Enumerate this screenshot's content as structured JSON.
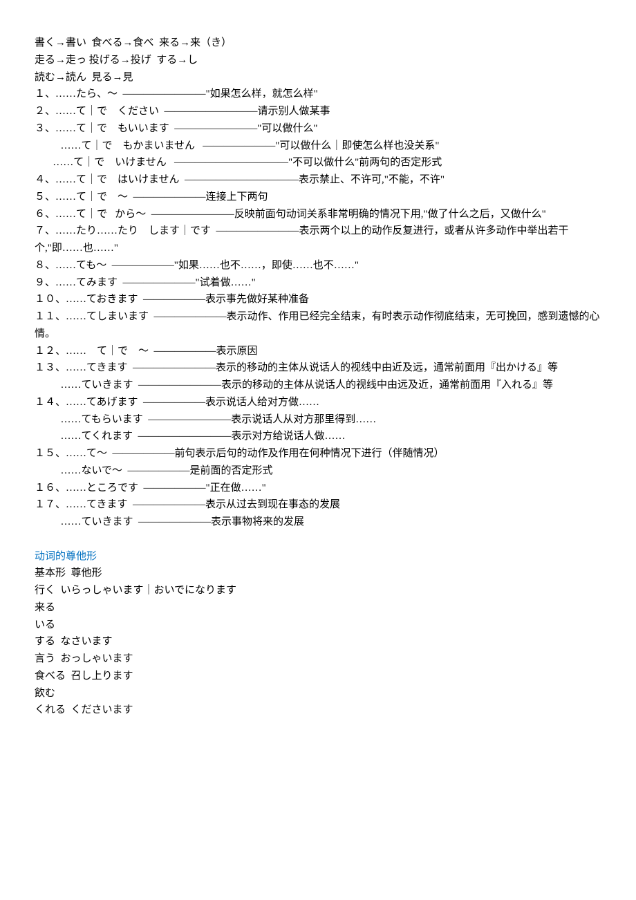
{
  "lines": [
    {
      "text": "書く→書い  食べる→食べ  来る→来（き）"
    },
    {
      "text": "走る→走っ 投げる→投げ  する→し"
    },
    {
      "text": "読む→読ん  見る→見"
    },
    {
      "text": "１、……たら、～  ————————\"如果怎么样，就怎么样\""
    },
    {
      "text": "２、……て｜で　ください  —————————请示别人做某事"
    },
    {
      "text": "３、……て｜で　もいいます  ————————\"可以做什么\""
    },
    {
      "text": "          ……て｜で　もかまいません   ———————\"可以做什么｜即使怎么样也没关系\""
    },
    {
      "text": "       ……て｜で　いけません   ———————————\"不可以做什么\"前两句的否定形式"
    },
    {
      "text": "４、……て｜で　はいけません  ———————————表示禁止、不许可,\"不能，不许\""
    },
    {
      "text": "５、……て｜で　～  ———————连接上下两句"
    },
    {
      "text": "６、……て｜で   から～  ————————反映前面句动词关系非常明确的情况下用,\"做了什么之后，又做什么\""
    },
    {
      "text": "７、……たり……たり　します｜です  ————————表示两个以上的动作反复进行，或者从许多动作中举出若干个,\"即……也……\""
    },
    {
      "text": "８、……ても～  ——————\"如果……也不……，即使……也不……\""
    },
    {
      "text": "９、……てみます  ———————\"试着做……\""
    },
    {
      "text": "１０、……ておきます  ——————表示事先做好某种准备"
    },
    {
      "text": "１１、……てしまいます  ———————表示动作、作用已经完全结束，有时表示动作彻底结束，无可挽回，感到遗憾的心情。"
    },
    {
      "text": "１２、……　て｜で　～  ——————表示原因"
    },
    {
      "text": "１３、……てきます  ————————表示的移动的主体从说话人的视线中由近及远，通常前面用『出かける』等"
    },
    {
      "text": "          ……ていきます  ————————表示的移动的主体从说话人的视线中由远及近，通常前面用『入れる』等"
    },
    {
      "text": "１４、……てあげます  ——————表示说话人给对方做……"
    },
    {
      "text": "          ……てもらいます  ————————表示说话人从对方那里得到……"
    },
    {
      "text": "          ……てくれます  —————————表示对方给说话人做……"
    },
    {
      "text": "１５、……て～  ——————前句表示后句的动作及作用在何种情况下进行（伴随情况）"
    },
    {
      "text": "          ……ないで～  ——————是前面的否定形式"
    },
    {
      "text": "１６、……ところです  ——————\"正在做……\""
    },
    {
      "text": "１７、……てきます  ———————表示从过去到现在事态的发展"
    },
    {
      "text": "          ……ていきます  ———————表示事物将来的发展"
    }
  ],
  "sectionTitle": "动词的尊他形",
  "tableHeader": "基本形  尊他形",
  "honorificRows": [
    {
      "text": "行く  いらっしゃいます｜おいでになります"
    },
    {
      "text": "来る"
    },
    {
      "text": "いる"
    },
    {
      "text": "する  なさいます"
    },
    {
      "text": "言う  おっしゃいます"
    },
    {
      "text": "食べる  召し上ります"
    },
    {
      "text": "飲む"
    },
    {
      "text": "くれる  くださいます"
    }
  ]
}
